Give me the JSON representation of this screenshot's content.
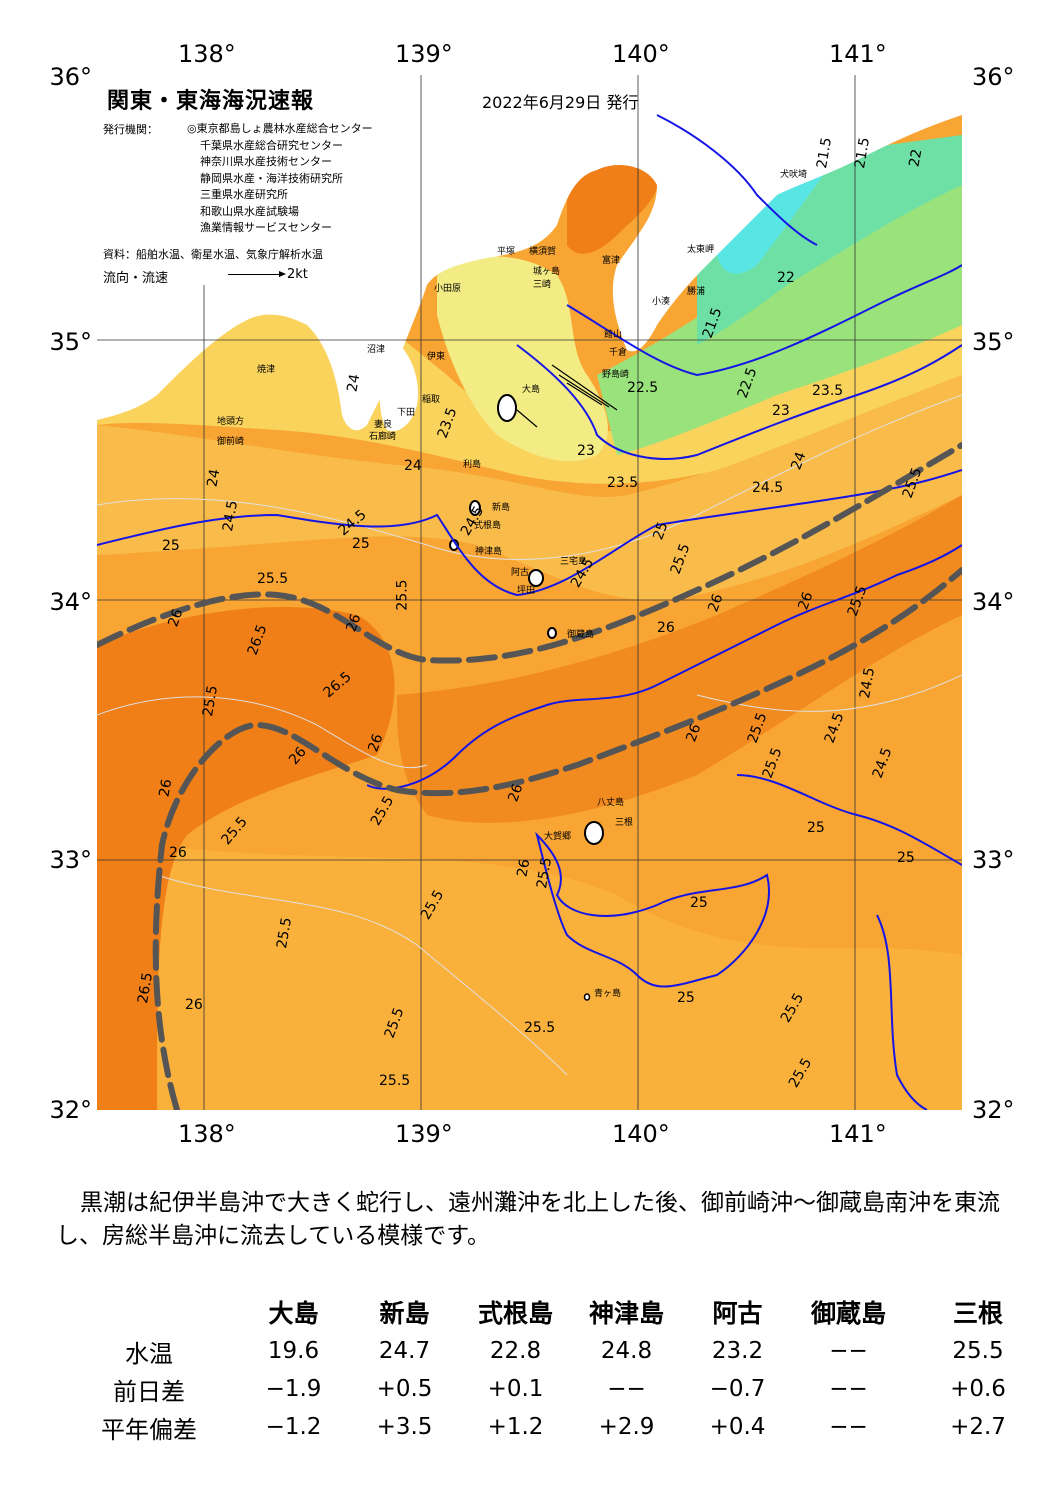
{
  "axes": {
    "lon_top": [
      "138°",
      "139°",
      "140°",
      "141°"
    ],
    "lon_bottom": [
      "138°",
      "139°",
      "140°",
      "141°"
    ],
    "lat_left": [
      "36°",
      "35°",
      "34°",
      "33°",
      "32°"
    ],
    "lat_right": [
      "36°",
      "35°",
      "34°",
      "33°",
      "32°"
    ]
  },
  "header": {
    "title": "関東・東海海況速報",
    "date": "2022年6月29日 発行",
    "issuer_label": "発行機関：",
    "issuers": [
      "◎東京都島しょ農林水産総合センター",
      "千葉県水産総合研究センター",
      "神奈川県水産技術センター",
      "静岡県水産・海洋技術研究所",
      "三重県水産研究所",
      "和歌山県水産試験場",
      "漁業情報サービスセンター"
    ],
    "source": "資料：船舶水温、衛星水温、気象庁解析水温",
    "flow_label": "流向・流速",
    "flow_unit": "2kt"
  },
  "places": {
    "odawara": "小田原",
    "hiratsuka": "平塚",
    "yokosuka": "横須賀",
    "jogashima": "城ヶ島",
    "misaki": "三崎",
    "futtsu": "富津",
    "tateyama": "館山",
    "chikura": "千倉",
    "nojimazaki": "野島崎",
    "taitomisaki": "太東岬",
    "inubozaki": "犬吠埼",
    "kominato": "小湊",
    "katsuura": "勝浦",
    "numazu": "沼津",
    "ito": "伊東",
    "yaizu": "焼津",
    "omaezaki": "御前崎",
    "jitokata": "地頭方",
    "inatori": "稲取",
    "shimoda": "下田",
    "mera": "妻良",
    "irozaki": "石廊崎",
    "oshima": "大島",
    "toshima": "利島",
    "niijima": "新島",
    "shikinejima": "式根島",
    "kozushima": "神津島",
    "miyakejima": "三宅島",
    "ako": "阿古",
    "tsubota": "坪田",
    "mikurajima": "御蔵島",
    "hachijojima": "八丈島",
    "okago": "大賀郷",
    "mitsune": "三根",
    "aogashima": "青ヶ島"
  },
  "isotherm_labels": [
    "21.5",
    "22",
    "22.5",
    "23",
    "23.5",
    "24",
    "24.5",
    "25",
    "25.5",
    "26",
    "26.5"
  ],
  "colors": {
    "sea_deep_orange": "#ef7f16",
    "sea_orange": "#f8a533",
    "sea_light_orange": "#f9bc4a",
    "sea_yellow_orange": "#fad35d",
    "sea_yellow": "#f3ec85",
    "sea_green": "#9ae37c",
    "sea_teal": "#6ee0a6",
    "sea_cyan": "#5ae5e5",
    "land": "#ffffff",
    "isotherm_major": "#1515e6",
    "isotherm_minor": "#e0e0e0",
    "kuroshio_axis": "#555555"
  },
  "comment": "黒潮は紀伊半島沖で大きく蛇行し、遠州灘沖を北上した後、御前崎沖～御蔵島南沖を東流し、房総半島沖に流去している模様です。",
  "stats": {
    "columns": [
      "大島",
      "新島",
      "式根島",
      "神津島",
      "阿古",
      "御蔵島",
      "三根"
    ],
    "rows": [
      {
        "label": "水温",
        "values": [
          "19.6",
          "24.7",
          "22.8",
          "24.8",
          "23.2",
          "−−",
          "25.5"
        ]
      },
      {
        "label": "前日差",
        "values": [
          "−1.9",
          "+0.5",
          "+0.1",
          "−−",
          "−0.7",
          "−−",
          "+0.6"
        ]
      },
      {
        "label": "平年偏差",
        "values": [
          "−1.2",
          "+3.5",
          "+1.2",
          "+2.9",
          "+0.4",
          "−−",
          "+2.7"
        ]
      }
    ]
  }
}
